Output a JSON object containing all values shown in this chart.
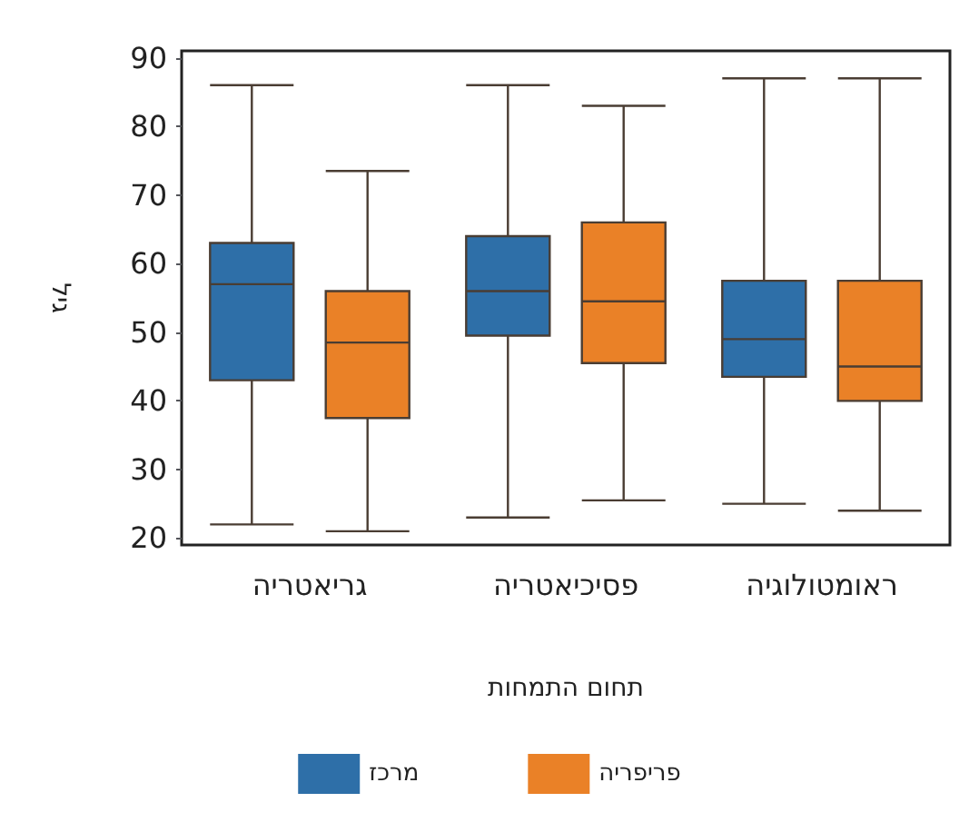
{
  "chart_data": {
    "type": "box",
    "xlabel": "תחום התמחות",
    "ylabel": "גיל",
    "categories": [
      "גריאטריה",
      "פסיכיאטריה",
      "ראומטולוגיה"
    ],
    "series": [
      {
        "name": "מרכז",
        "color": "#2e6fa8",
        "boxes": [
          {
            "low": 22,
            "q1": 43,
            "median": 57,
            "q3": 63,
            "high": 86
          },
          {
            "low": 23,
            "q1": 49.5,
            "median": 56,
            "q3": 64,
            "high": 86
          },
          {
            "low": 25,
            "q1": 43.5,
            "median": 49,
            "q3": 57.5,
            "high": 87
          }
        ]
      },
      {
        "name": "פריפריה",
        "color": "#ea8127",
        "boxes": [
          {
            "low": 21,
            "q1": 37.5,
            "median": 48.5,
            "q3": 56,
            "high": 73.5
          },
          {
            "low": 25.5,
            "q1": 45.5,
            "median": 54.5,
            "q3": 66,
            "high": 83
          },
          {
            "low": 24,
            "q1": 40,
            "median": 45,
            "q3": 57.5,
            "high": 87
          }
        ]
      }
    ],
    "ylim": [
      19,
      91
    ],
    "yticks": [
      20,
      30,
      40,
      50,
      60,
      70,
      80,
      90
    ],
    "grid": false,
    "legend": "bottom"
  }
}
